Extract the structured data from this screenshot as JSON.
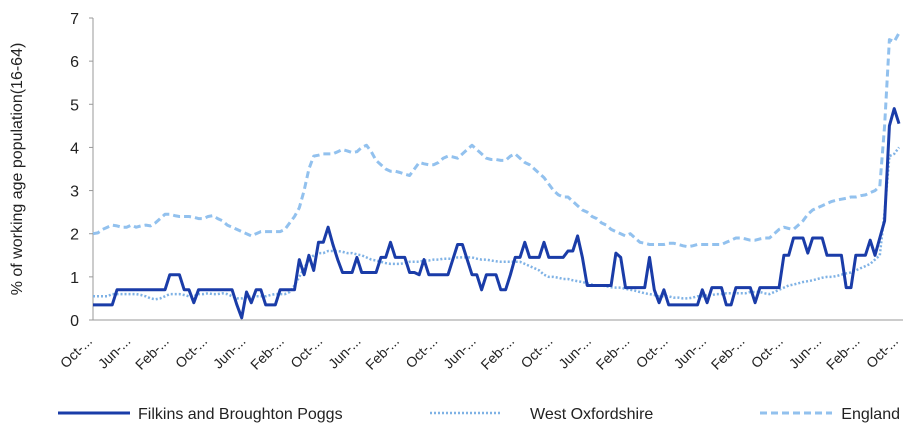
{
  "chart_data": {
    "type": "line",
    "y_label": "% of working age population(16-64)",
    "ylim": [
      0,
      7
    ],
    "yticks": [
      0,
      1,
      2,
      3,
      4,
      5,
      6,
      7
    ],
    "grid": false,
    "legend": "bottom",
    "categories": [
      "Oct-...",
      null,
      null,
      null,
      null,
      null,
      null,
      null,
      "Jun-...",
      null,
      null,
      null,
      null,
      null,
      null,
      null,
      "Feb-...",
      null,
      null,
      null,
      null,
      null,
      null,
      null,
      "Oct-...",
      null,
      null,
      null,
      null,
      null,
      null,
      null,
      "Jun-...",
      null,
      null,
      null,
      null,
      null,
      null,
      null,
      "Feb-...",
      null,
      null,
      null,
      null,
      null,
      null,
      null,
      "Oct-...",
      null,
      null,
      null,
      null,
      null,
      null,
      null,
      "Jun-...",
      null,
      null,
      null,
      null,
      null,
      null,
      null,
      "Feb-...",
      null,
      null,
      null,
      null,
      null,
      null,
      null,
      "Oct-...",
      null,
      null,
      null,
      null,
      null,
      null,
      null,
      "Jun-...",
      null,
      null,
      null,
      null,
      null,
      null,
      null,
      "Feb-...",
      null,
      null,
      null,
      null,
      null,
      null,
      null,
      "Oct-...",
      null,
      null,
      null,
      null,
      null,
      null,
      null,
      "Jun-...",
      null,
      null,
      null,
      null,
      null,
      null,
      null,
      "Feb-...",
      null,
      null,
      null,
      null,
      null,
      null,
      null,
      "Oct-...",
      null,
      null,
      null,
      null,
      null,
      null,
      null,
      "Jun-...",
      null,
      null,
      null,
      null,
      null,
      null,
      null,
      "Feb-...",
      null,
      null,
      null,
      null,
      null,
      null,
      null,
      "Oct-...",
      null,
      null,
      null,
      null,
      null,
      null,
      null,
      "Jun-...",
      null,
      null,
      null,
      null,
      null,
      null,
      null,
      "Feb-...",
      null,
      null,
      null,
      null,
      null,
      null,
      null,
      "Oct-..."
    ],
    "series": [
      {
        "name": "Filkins and Broughton Poggs",
        "color": "#1a3ca8",
        "line_style": "solid",
        "values": [
          0.35,
          0.35,
          0.35,
          0.35,
          0.35,
          0.7,
          0.7,
          0.7,
          0.7,
          0.7,
          0.7,
          0.7,
          0.7,
          0.7,
          0.7,
          0.7,
          1.05,
          1.05,
          1.05,
          0.7,
          0.7,
          0.4,
          0.7,
          0.7,
          0.7,
          0.7,
          0.7,
          0.7,
          0.7,
          0.7,
          0.35,
          0.05,
          0.65,
          0.4,
          0.7,
          0.7,
          0.35,
          0.35,
          0.35,
          0.7,
          0.7,
          0.7,
          0.7,
          1.4,
          1.05,
          1.5,
          1.15,
          1.8,
          1.8,
          2.15,
          1.75,
          1.4,
          1.1,
          1.1,
          1.1,
          1.45,
          1.1,
          1.1,
          1.1,
          1.1,
          1.45,
          1.45,
          1.8,
          1.45,
          1.45,
          1.45,
          1.1,
          1.1,
          1.05,
          1.4,
          1.05,
          1.05,
          1.05,
          1.05,
          1.05,
          1.4,
          1.75,
          1.75,
          1.4,
          1.05,
          1.05,
          0.7,
          1.05,
          1.05,
          1.05,
          0.7,
          0.7,
          1.05,
          1.45,
          1.45,
          1.8,
          1.45,
          1.45,
          1.45,
          1.8,
          1.45,
          1.45,
          1.45,
          1.45,
          1.6,
          1.6,
          1.95,
          1.45,
          0.8,
          0.8,
          0.8,
          0.8,
          0.8,
          0.8,
          1.55,
          1.45,
          0.75,
          0.75,
          0.75,
          0.75,
          0.75,
          1.45,
          0.7,
          0.4,
          0.7,
          0.35,
          0.35,
          0.35,
          0.35,
          0.35,
          0.35,
          0.35,
          0.7,
          0.4,
          0.75,
          0.75,
          0.75,
          0.35,
          0.35,
          0.75,
          0.75,
          0.75,
          0.75,
          0.4,
          0.75,
          0.75,
          0.75,
          0.75,
          0.75,
          1.5,
          1.5,
          1.9,
          1.9,
          1.9,
          1.55,
          1.9,
          1.9,
          1.9,
          1.5,
          1.5,
          1.5,
          1.5,
          0.75,
          0.75,
          1.5,
          1.5,
          1.5,
          1.85,
          1.5,
          1.9,
          2.3,
          4.5,
          4.9,
          4.55
        ]
      },
      {
        "name": "West Oxfordshire",
        "color": "#7fb2e5",
        "line_style": "dotted",
        "values": [
          0.55,
          0.55,
          0.55,
          0.55,
          0.6,
          0.6,
          0.6,
          0.6,
          0.6,
          0.6,
          0.58,
          0.55,
          0.5,
          0.48,
          0.5,
          0.55,
          0.6,
          0.6,
          0.6,
          0.58,
          0.55,
          0.55,
          0.6,
          0.6,
          0.62,
          0.6,
          0.6,
          0.62,
          0.6,
          0.55,
          0.5,
          0.5,
          0.52,
          0.55,
          0.55,
          0.55,
          0.55,
          0.58,
          0.6,
          0.6,
          0.6,
          0.65,
          0.8,
          1.0,
          1.2,
          1.4,
          1.5,
          1.55,
          1.55,
          1.6,
          1.6,
          1.6,
          1.58,
          1.55,
          1.55,
          1.52,
          1.5,
          1.45,
          1.4,
          1.38,
          1.35,
          1.32,
          1.3,
          1.3,
          1.3,
          1.32,
          1.35,
          1.35,
          1.35,
          1.38,
          1.38,
          1.4,
          1.4,
          1.42,
          1.42,
          1.42,
          1.45,
          1.45,
          1.45,
          1.45,
          1.42,
          1.4,
          1.4,
          1.38,
          1.36,
          1.35,
          1.35,
          1.35,
          1.35,
          1.35,
          1.3,
          1.25,
          1.2,
          1.15,
          1.05,
          1.0,
          1.0,
          0.98,
          0.95,
          0.95,
          0.92,
          0.9,
          0.88,
          0.85,
          0.82,
          0.8,
          0.8,
          0.78,
          0.76,
          0.75,
          0.75,
          0.72,
          0.7,
          0.68,
          0.65,
          0.62,
          0.6,
          0.58,
          0.55,
          0.55,
          0.55,
          0.52,
          0.52,
          0.5,
          0.5,
          0.52,
          0.55,
          0.55,
          0.58,
          0.58,
          0.6,
          0.6,
          0.62,
          0.62,
          0.62,
          0.62,
          0.62,
          0.65,
          0.65,
          0.65,
          0.62,
          0.6,
          0.65,
          0.7,
          0.75,
          0.8,
          0.82,
          0.85,
          0.88,
          0.9,
          0.92,
          0.95,
          0.98,
          1.0,
          1.0,
          1.02,
          1.05,
          1.08,
          1.1,
          1.15,
          1.2,
          1.25,
          1.3,
          1.4,
          1.5,
          2.5,
          3.8,
          3.85,
          4.0
        ]
      },
      {
        "name": "England",
        "color": "#92c1ee",
        "line_style": "dashed",
        "values": [
          2.0,
          2.02,
          2.1,
          2.15,
          2.2,
          2.18,
          2.15,
          2.15,
          2.2,
          2.15,
          2.18,
          2.2,
          2.18,
          2.25,
          2.35,
          2.45,
          2.45,
          2.42,
          2.4,
          2.4,
          2.4,
          2.38,
          2.35,
          2.35,
          2.4,
          2.42,
          2.35,
          2.3,
          2.2,
          2.15,
          2.1,
          2.05,
          2.0,
          1.95,
          2.0,
          2.05,
          2.05,
          2.05,
          2.05,
          2.05,
          2.1,
          2.25,
          2.4,
          2.6,
          3.0,
          3.5,
          3.8,
          3.82,
          3.85,
          3.85,
          3.85,
          3.9,
          3.95,
          3.92,
          3.88,
          3.9,
          4.0,
          4.05,
          3.9,
          3.7,
          3.6,
          3.5,
          3.45,
          3.45,
          3.42,
          3.38,
          3.35,
          3.5,
          3.65,
          3.62,
          3.6,
          3.6,
          3.65,
          3.75,
          3.8,
          3.78,
          3.75,
          3.85,
          3.95,
          4.05,
          3.95,
          3.85,
          3.75,
          3.72,
          3.72,
          3.7,
          3.7,
          3.8,
          3.85,
          3.75,
          3.65,
          3.6,
          3.5,
          3.4,
          3.3,
          3.15,
          3.0,
          2.9,
          2.85,
          2.85,
          2.75,
          2.65,
          2.55,
          2.5,
          2.4,
          2.35,
          2.25,
          2.2,
          2.1,
          2.05,
          2.0,
          1.95,
          2.0,
          1.9,
          1.8,
          1.78,
          1.75,
          1.75,
          1.75,
          1.75,
          1.78,
          1.78,
          1.75,
          1.72,
          1.7,
          1.72,
          1.75,
          1.75,
          1.75,
          1.75,
          1.75,
          1.75,
          1.8,
          1.85,
          1.9,
          1.9,
          1.88,
          1.85,
          1.85,
          1.88,
          1.9,
          1.9,
          2.0,
          2.1,
          2.15,
          2.12,
          2.1,
          2.2,
          2.3,
          2.45,
          2.55,
          2.6,
          2.65,
          2.7,
          2.75,
          2.78,
          2.8,
          2.82,
          2.85,
          2.85,
          2.88,
          2.9,
          2.95,
          3.0,
          3.1,
          4.5,
          6.5,
          6.45,
          6.65
        ]
      }
    ]
  }
}
